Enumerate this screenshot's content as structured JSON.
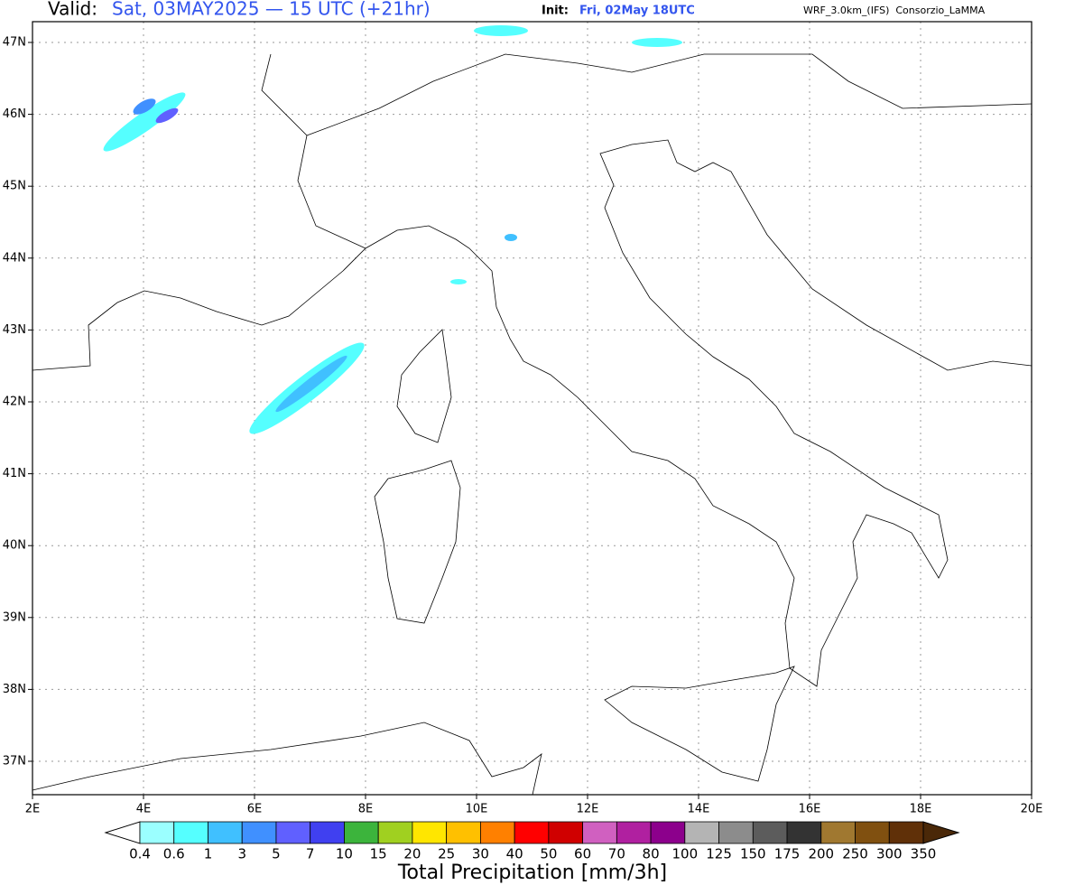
{
  "header": {
    "valid_label": "Valid:",
    "valid_time": "Sat, 03MAY2025 — 15 UTC (+21hr)",
    "init_label": "Init:",
    "init_time": "Fri, 02May 18UTC",
    "model": "WRF_3.0km_(IFS)  Consorzio_LaMMA"
  },
  "map": {
    "lon_ticks": [
      {
        "value": 2,
        "label": "2E"
      },
      {
        "value": 4,
        "label": "4E"
      },
      {
        "value": 6,
        "label": "6E"
      },
      {
        "value": 8,
        "label": "8E"
      },
      {
        "value": 10,
        "label": "10E"
      },
      {
        "value": 12,
        "label": "12E"
      },
      {
        "value": 14,
        "label": "14E"
      },
      {
        "value": 16,
        "label": "16E"
      },
      {
        "value": 18,
        "label": "18E"
      },
      {
        "value": 20,
        "label": "20E"
      }
    ],
    "lat_ticks": [
      {
        "value": 37,
        "label": "37N"
      },
      {
        "value": 38,
        "label": "38N"
      },
      {
        "value": 39,
        "label": "39N"
      },
      {
        "value": 40,
        "label": "40N"
      },
      {
        "value": 41,
        "label": "41N"
      },
      {
        "value": 42,
        "label": "42N"
      },
      {
        "value": 43,
        "label": "43N"
      },
      {
        "value": 44,
        "label": "44N"
      },
      {
        "value": 45,
        "label": "45N"
      },
      {
        "value": 46,
        "label": "46N"
      },
      {
        "value": 47,
        "label": "47N"
      }
    ]
  },
  "colorbar": {
    "title": "Total Precipitation [mm/3h]",
    "levels": [
      0.4,
      0.6,
      1,
      3,
      5,
      7,
      10,
      15,
      20,
      25,
      30,
      40,
      50,
      60,
      70,
      80,
      100,
      125,
      150,
      175,
      200,
      250,
      300,
      350
    ],
    "colors": [
      "#ffffff",
      "#9bffff",
      "#55ffff",
      "#40c0ff",
      "#4090ff",
      "#6060ff",
      "#4040f0",
      "#3cb43c",
      "#a0d020",
      "#ffe600",
      "#ffc000",
      "#ff8000",
      "#ff0000",
      "#d00000",
      "#d060c0",
      "#b020a0",
      "#8c008c",
      "#b4b4b4",
      "#8c8c8c",
      "#5c5c5c",
      "#333333",
      "#a07830",
      "#805010",
      "#603008",
      "#4a2808"
    ]
  }
}
